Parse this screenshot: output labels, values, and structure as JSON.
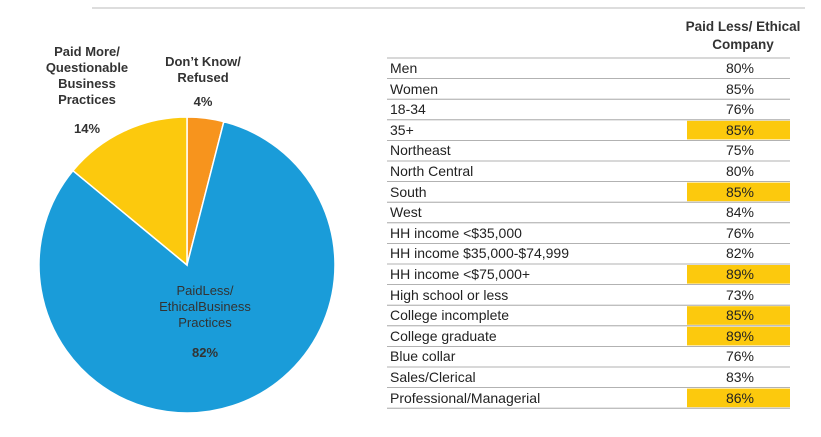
{
  "chart_data": {
    "type": "pie",
    "categories": [
      "Don’t Know/ Refused",
      "PaidLess/ EthicalBusiness Practices",
      "Paid More/ Questionable Business Practices"
    ],
    "values": [
      4,
      82,
      14
    ],
    "value_labels": [
      "4%",
      "82%",
      "14%"
    ],
    "colors": [
      "#f7941d",
      "#1a9cd9",
      "#fcc90d"
    ]
  },
  "table": {
    "header": "Paid Less/ Ethical Company",
    "highlight_color": "#fcc90d",
    "rows": [
      {
        "label": "Men",
        "value": "80%",
        "highlighted": false
      },
      {
        "label": "Women",
        "value": "85%",
        "highlighted": false
      },
      {
        "label": "18-34",
        "value": "76%",
        "highlighted": false
      },
      {
        "label": "35+",
        "value": "85%",
        "highlighted": true
      },
      {
        "label": "Northeast",
        "value": "75%",
        "highlighted": false
      },
      {
        "label": "North Central",
        "value": "80%",
        "highlighted": false
      },
      {
        "label": "South",
        "value": "85%",
        "highlighted": true
      },
      {
        "label": "West",
        "value": "84%",
        "highlighted": false
      },
      {
        "label": "HH income <$35,000",
        "value": "76%",
        "highlighted": false
      },
      {
        "label": "HH income $35,000-$74,999",
        "value": "82%",
        "highlighted": false
      },
      {
        "label": "HH income <$75,000+",
        "value": "89%",
        "highlighted": true
      },
      {
        "label": "High school or less",
        "value": "73%",
        "highlighted": false
      },
      {
        "label": "College incomplete",
        "value": "85%",
        "highlighted": true
      },
      {
        "label": "College graduate",
        "value": "89%",
        "highlighted": true
      },
      {
        "label": "Blue collar",
        "value": "76%",
        "highlighted": false
      },
      {
        "label": "Sales/Clerical",
        "value": "83%",
        "highlighted": false
      },
      {
        "label": "Professional/Managerial",
        "value": "86%",
        "highlighted": true
      }
    ]
  }
}
